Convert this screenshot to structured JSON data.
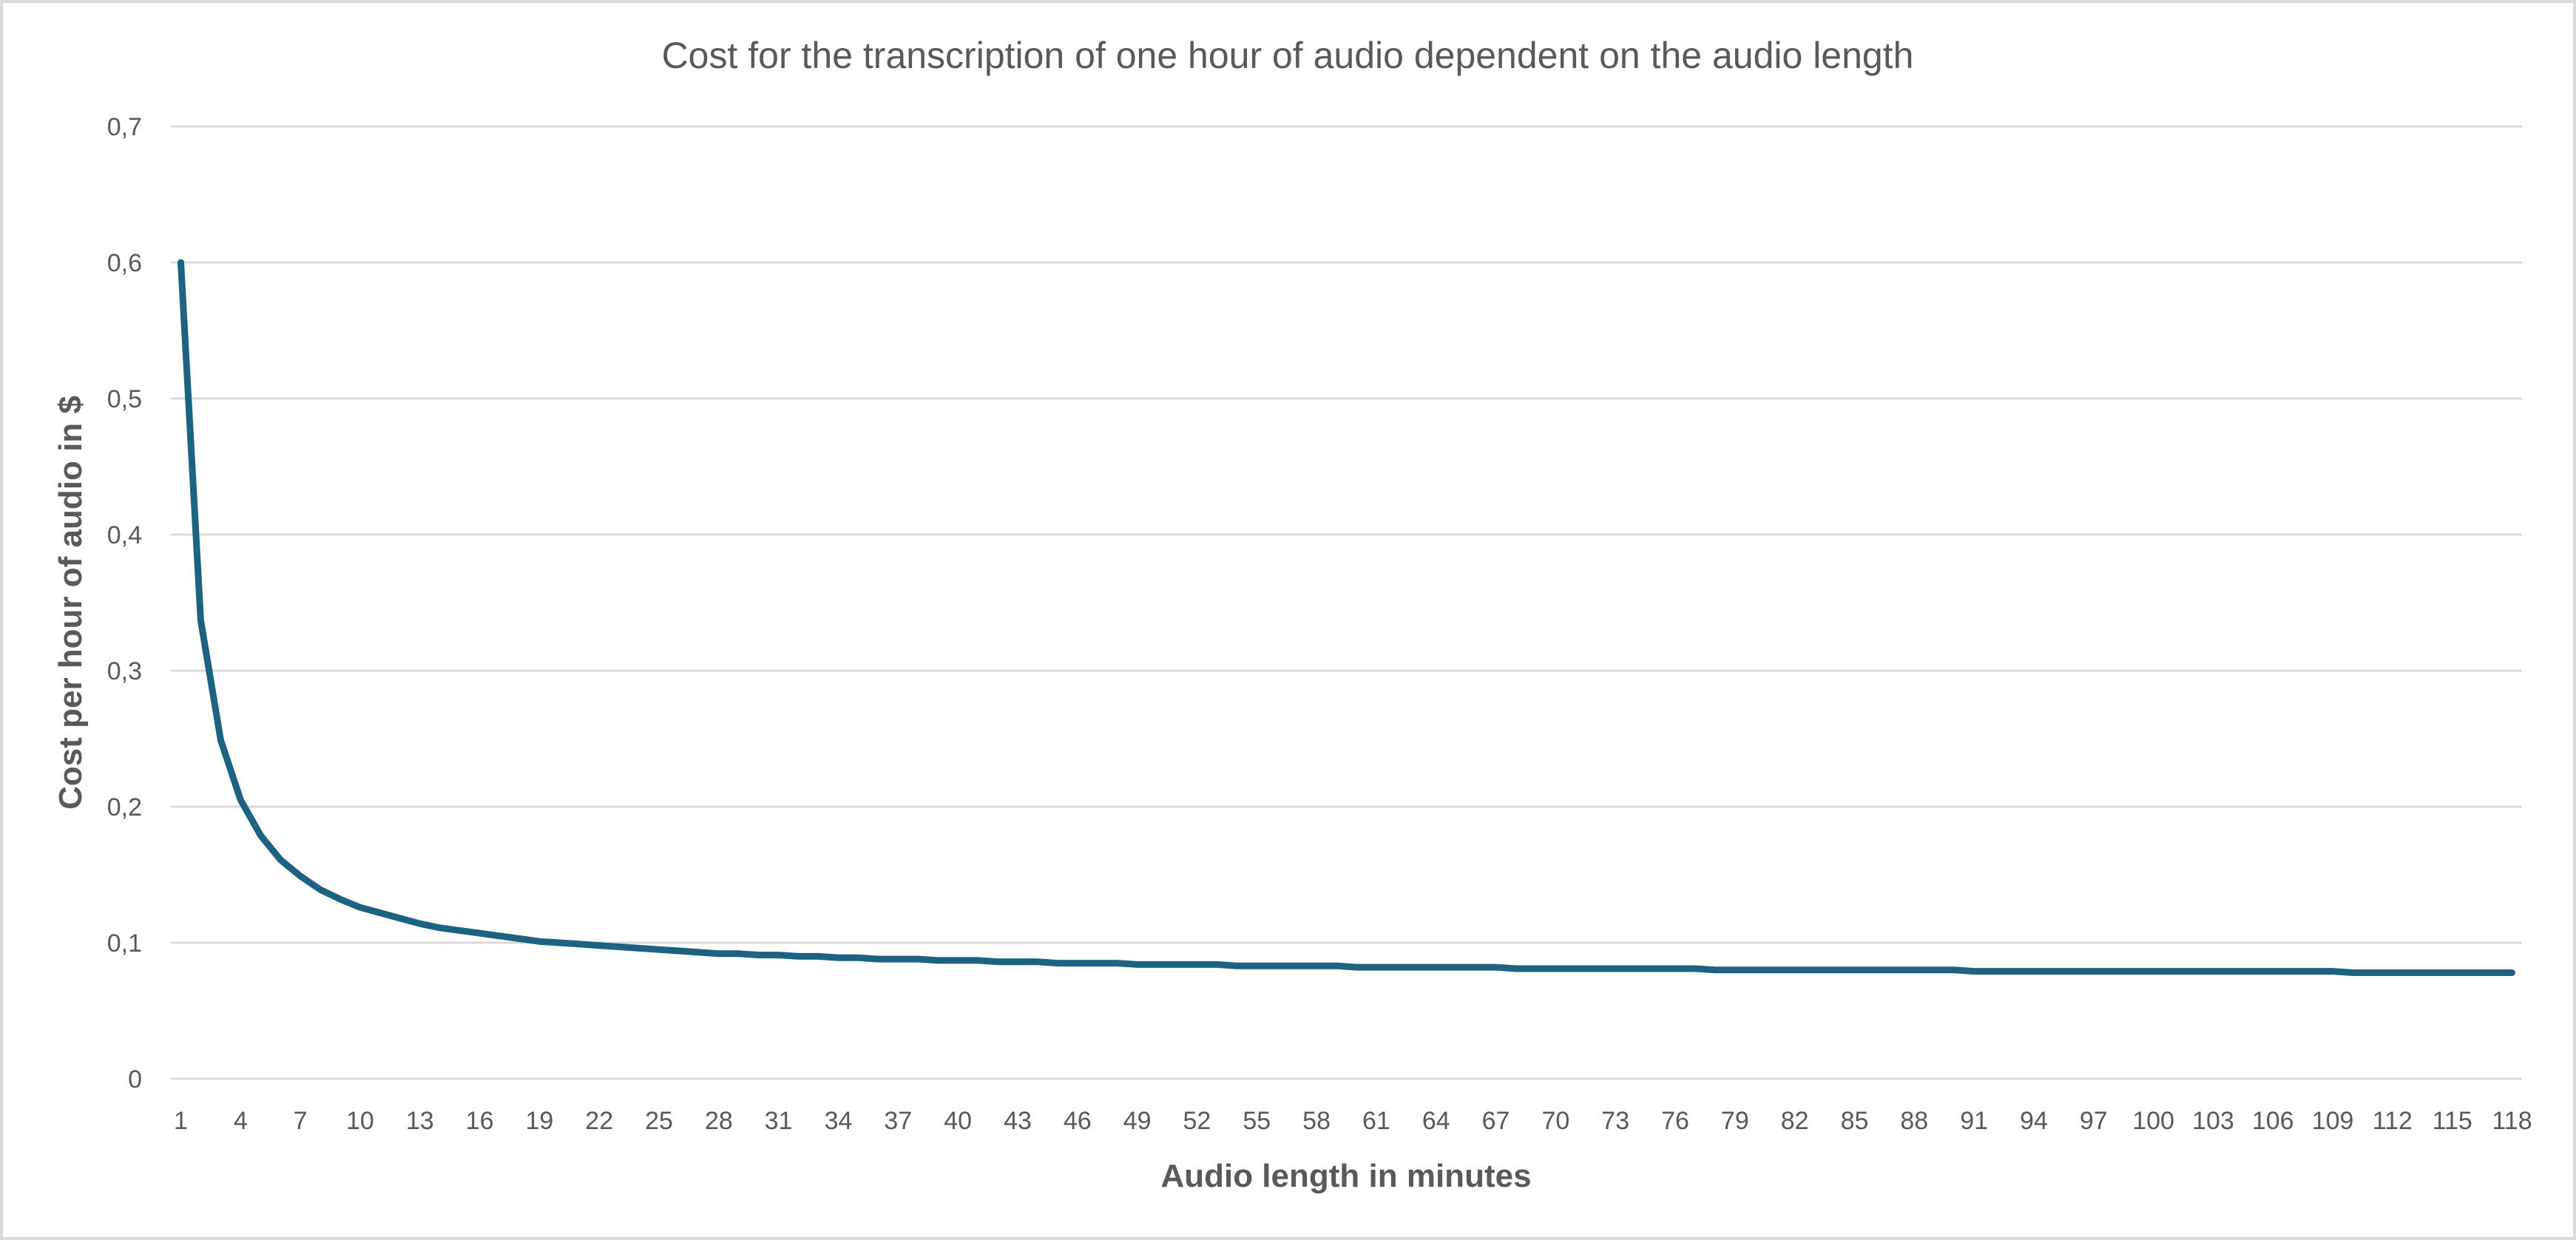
{
  "chart_data": {
    "type": "line",
    "title": "Cost for the transcription of one hour of audio dependent on the audio length",
    "xlabel": "Audio length in minutes",
    "ylabel": "Cost per hour of audio in $",
    "ylim": [
      0,
      0.7
    ],
    "yticks": [
      "0",
      "0,1",
      "0,2",
      "0,3",
      "0,4",
      "0,5",
      "0,6",
      "0,7"
    ],
    "grid": "horizontal",
    "legend": "none",
    "line_color": "#1b6283",
    "x_tick_every": 3,
    "x": [
      1,
      2,
      3,
      4,
      5,
      6,
      7,
      8,
      9,
      10,
      11,
      12,
      13,
      14,
      15,
      16,
      17,
      18,
      19,
      20,
      21,
      22,
      23,
      24,
      25,
      26,
      27,
      28,
      29,
      30,
      31,
      32,
      33,
      34,
      35,
      36,
      37,
      38,
      39,
      40,
      41,
      42,
      43,
      44,
      45,
      46,
      47,
      48,
      49,
      50,
      51,
      52,
      53,
      54,
      55,
      56,
      57,
      58,
      59,
      60,
      61,
      62,
      63,
      64,
      65,
      66,
      67,
      68,
      69,
      70,
      71,
      72,
      73,
      74,
      75,
      76,
      77,
      78,
      79,
      80,
      81,
      82,
      83,
      84,
      85,
      86,
      87,
      88,
      89,
      90,
      91,
      92,
      93,
      94,
      95,
      96,
      97,
      98,
      99,
      100,
      101,
      102,
      103,
      104,
      105,
      106,
      107,
      108,
      109,
      110,
      111,
      112,
      113,
      114,
      115,
      116,
      117,
      118
    ],
    "values": [
      0.6,
      0.337,
      0.249,
      0.205,
      0.179,
      0.161,
      0.149,
      0.139,
      0.132,
      0.126,
      0.122,
      0.118,
      0.114,
      0.111,
      0.109,
      0.107,
      0.105,
      0.103,
      0.101,
      0.1,
      0.099,
      0.098,
      0.097,
      0.096,
      0.095,
      0.094,
      0.093,
      0.092,
      0.092,
      0.091,
      0.091,
      0.09,
      0.09,
      0.089,
      0.089,
      0.088,
      0.088,
      0.088,
      0.087,
      0.087,
      0.087,
      0.086,
      0.086,
      0.086,
      0.085,
      0.085,
      0.085,
      0.085,
      0.084,
      0.084,
      0.084,
      0.084,
      0.084,
      0.083,
      0.083,
      0.083,
      0.083,
      0.083,
      0.083,
      0.082,
      0.082,
      0.082,
      0.082,
      0.082,
      0.082,
      0.082,
      0.082,
      0.081,
      0.081,
      0.081,
      0.081,
      0.081,
      0.081,
      0.081,
      0.081,
      0.081,
      0.081,
      0.08,
      0.08,
      0.08,
      0.08,
      0.08,
      0.08,
      0.08,
      0.08,
      0.08,
      0.08,
      0.08,
      0.08,
      0.08,
      0.079,
      0.079,
      0.079,
      0.079,
      0.079,
      0.079,
      0.079,
      0.079,
      0.079,
      0.079,
      0.079,
      0.079,
      0.079,
      0.079,
      0.079,
      0.079,
      0.079,
      0.079,
      0.079,
      0.078,
      0.078,
      0.078,
      0.078,
      0.078,
      0.078,
      0.078,
      0.078,
      0.078
    ]
  }
}
